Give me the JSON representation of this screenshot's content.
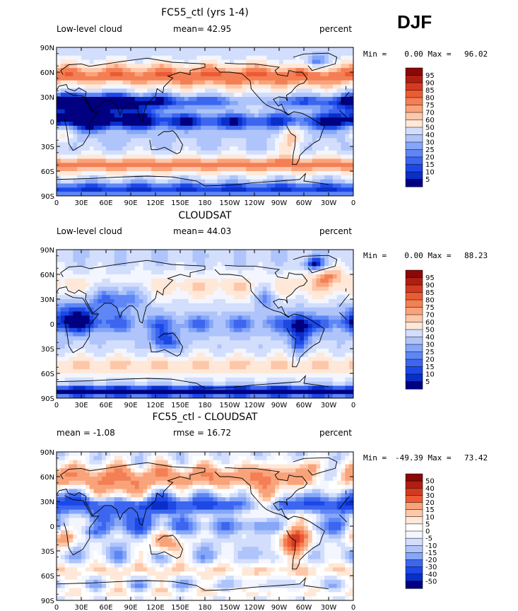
{
  "season": "DJF",
  "colors": {
    "cloud_scale": [
      "#000080",
      "#0a2ec8",
      "#1c48e6",
      "#3c66f0",
      "#5e86f5",
      "#86a6f8",
      "#aec4fa",
      "#d2defc",
      "#f3f6fe",
      "#ffe8d8",
      "#fdc7aa",
      "#f9a37a",
      "#f47f55",
      "#ec5a33",
      "#d43a20",
      "#b01e12",
      "#8a0808"
    ],
    "diff_scale": [
      "#000080",
      "#0a2ec8",
      "#1c48e6",
      "#3c66f0",
      "#5e86f5",
      "#86a6f8",
      "#aec4fa",
      "#d2defc",
      "#f3f6fe",
      "#ffffff",
      "#ffe8d8",
      "#fdc7aa",
      "#f9a37a",
      "#f47f55",
      "#ec5a33",
      "#d43a20",
      "#b01e12",
      "#8a0808"
    ]
  },
  "axes": {
    "lat_labels": [
      "90N",
      "60N",
      "30N",
      "0",
      "30S",
      "60S",
      "90S"
    ],
    "lon_labels": [
      "0",
      "30E",
      "60E",
      "90E",
      "120E",
      "150E",
      "180",
      "150W",
      "120W",
      "90W",
      "60W",
      "30W",
      "0"
    ]
  },
  "panels": [
    {
      "title": "FC55_ctl (yrs 1-4)",
      "left_label": "Low-level cloud",
      "center_label": "mean=  42.95",
      "units": "percent",
      "min_label": "Min =",
      "min_value": "0.00",
      "max_label": "Max =",
      "max_value": "96.02",
      "field": "model",
      "colorbar": [
        "95",
        "90",
        "85",
        "80",
        "75",
        "70",
        "60",
        "50",
        "40",
        "30",
        "25",
        "20",
        "15",
        "10",
        "5"
      ]
    },
    {
      "title": "CLOUDSAT",
      "left_label": "Low-level cloud",
      "center_label": "mean=  44.03",
      "units": "percent",
      "min_label": "Min =",
      "min_value": "0.00",
      "max_label": "Max =",
      "max_value": "88.23",
      "field": "obs",
      "colorbar": [
        "95",
        "90",
        "85",
        "80",
        "75",
        "70",
        "60",
        "50",
        "40",
        "30",
        "25",
        "20",
        "15",
        "10",
        "5"
      ]
    },
    {
      "title": "FC55_ctl - CLOUDSAT",
      "left_label": "mean =  -1.08",
      "center_label": "rmse =  16.72",
      "units": "percent",
      "min_label": "Min =",
      "min_value": "-49.39",
      "max_label": "Max =",
      "max_value": "73.42",
      "field": "diff",
      "colorbar": [
        "50",
        "40",
        "30",
        "20",
        "15",
        "10",
        "5",
        "0",
        "-5",
        "-10",
        "-15",
        "-20",
        "-30",
        "-40",
        "-50"
      ]
    }
  ]
}
